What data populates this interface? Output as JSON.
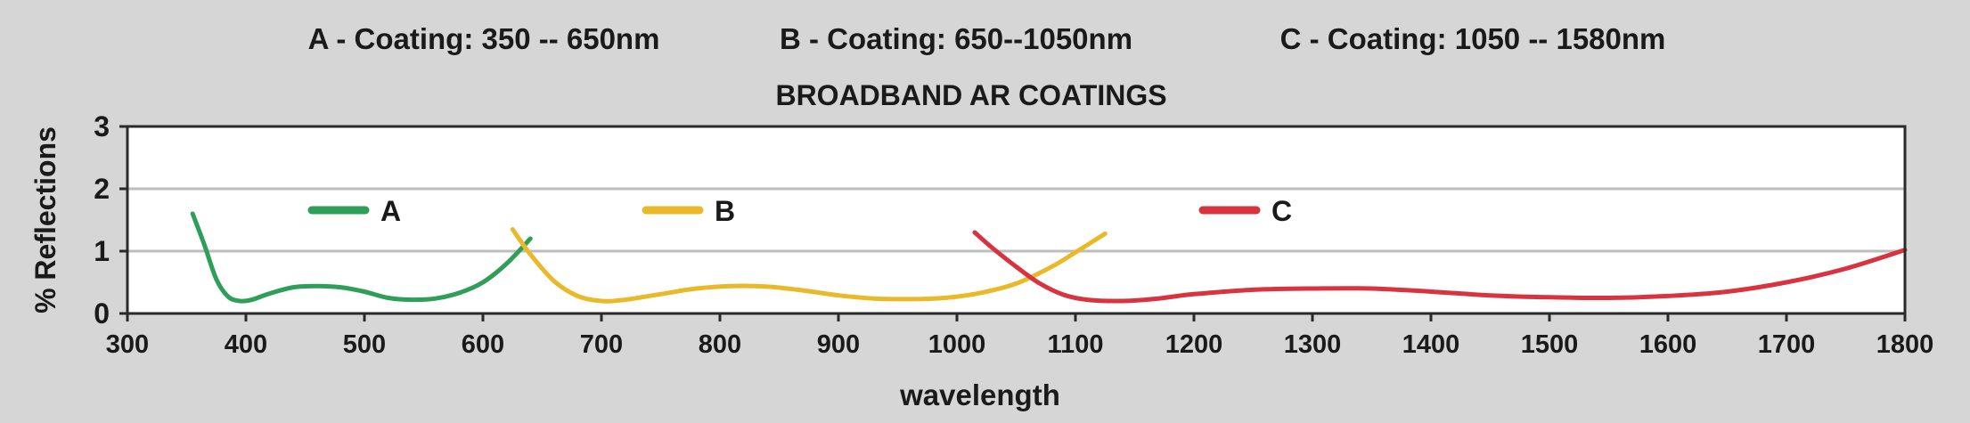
{
  "chart_data": {
    "type": "line",
    "title": "BROADBAND AR COATINGS",
    "header_notes": [
      "A - Coating: 350 -- 650nm",
      "B - Coating: 650--1050nm",
      "C - Coating: 1050 -- 1580nm"
    ],
    "xlabel": "wavelength",
    "ylabel": "% Reflections",
    "xlim": [
      300,
      1800
    ],
    "ylim": [
      0,
      3
    ],
    "xticks": [
      "300",
      "400",
      "500",
      "600",
      "700",
      "800",
      "900",
      "1000",
      "1100",
      "1200",
      "1300",
      "1400",
      "1500",
      "1600",
      "1700",
      "1800"
    ],
    "yticks": [
      "0",
      "1",
      "2",
      "3"
    ],
    "grid": "horizontal",
    "legend_placement": "inline",
    "series": [
      {
        "name": "A",
        "color": "#2e9e58",
        "legend_x": 530,
        "x": [
          355,
          365,
          375,
          385,
          395,
          405,
          420,
          440,
          460,
          480,
          500,
          520,
          540,
          560,
          580,
          600,
          620,
          640
        ],
        "y": [
          1.6,
          1.1,
          0.55,
          0.27,
          0.2,
          0.22,
          0.32,
          0.42,
          0.44,
          0.42,
          0.35,
          0.25,
          0.22,
          0.24,
          0.33,
          0.5,
          0.8,
          1.2
        ]
      },
      {
        "name": "B",
        "color": "#e9b92a",
        "legend_x": 905,
        "x": [
          625,
          640,
          660,
          680,
          700,
          720,
          750,
          780,
          810,
          840,
          870,
          900,
          930,
          960,
          990,
          1020,
          1050,
          1080,
          1100,
          1125
        ],
        "y": [
          1.35,
          0.95,
          0.52,
          0.28,
          0.2,
          0.22,
          0.31,
          0.4,
          0.44,
          0.43,
          0.37,
          0.29,
          0.24,
          0.23,
          0.25,
          0.33,
          0.48,
          0.75,
          0.98,
          1.28
        ]
      },
      {
        "name": "C",
        "color": "#d8343f",
        "legend_x": 1530,
        "x": [
          1015,
          1030,
          1050,
          1070,
          1090,
          1110,
          1140,
          1170,
          1200,
          1250,
          1300,
          1350,
          1400,
          1450,
          1500,
          1550,
          1600,
          1650,
          1700,
          1750,
          1800
        ],
        "y": [
          1.3,
          1.05,
          0.75,
          0.48,
          0.3,
          0.22,
          0.2,
          0.24,
          0.31,
          0.38,
          0.4,
          0.4,
          0.35,
          0.29,
          0.26,
          0.25,
          0.28,
          0.35,
          0.5,
          0.72,
          1.02
        ]
      }
    ]
  }
}
